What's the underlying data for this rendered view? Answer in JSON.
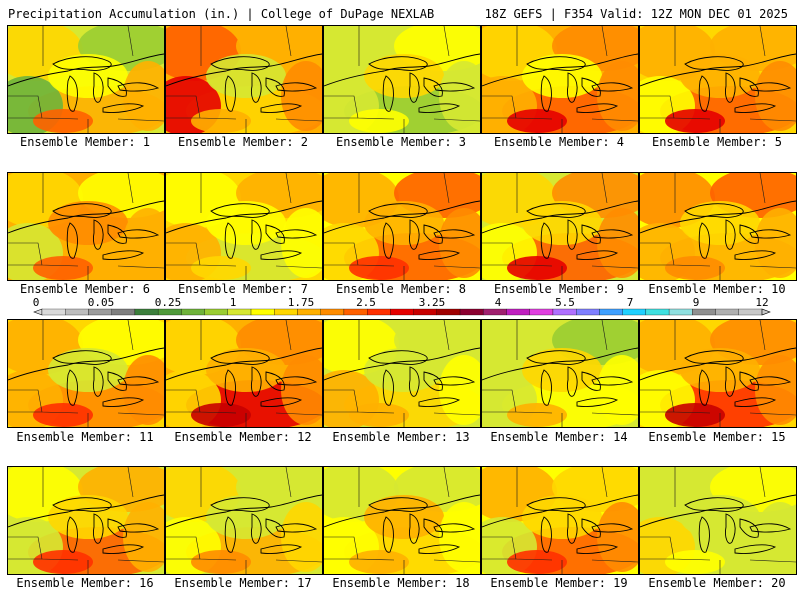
{
  "header": {
    "left_title": "Precipitation Accumulation (in.) | College of DuPage NEXLAB",
    "right_title": "18Z GEFS | F354 Valid: 12Z MON DEC 01 2025"
  },
  "members": [
    {
      "label": "Ensemble Member: 1",
      "palette": [
        0.35,
        0.45,
        0.25,
        0.55,
        0.15,
        0.4
      ]
    },
    {
      "label": "Ensemble Member: 2",
      "palette": [
        0.55,
        0.7,
        0.5,
        0.45,
        0.8,
        0.35
      ]
    },
    {
      "label": "Ensemble Member: 3",
      "palette": [
        0.3,
        0.35,
        0.4,
        0.25,
        0.35,
        0.45
      ]
    },
    {
      "label": "Ensemble Member: 4",
      "palette": [
        0.55,
        0.45,
        0.6,
        0.7,
        0.5,
        0.4
      ]
    },
    {
      "label": "Ensemble Member: 5",
      "palette": [
        0.45,
        0.55,
        0.5,
        0.7,
        0.4,
        0.55
      ]
    },
    {
      "label": "Ensemble Member: 6",
      "palette": [
        0.5,
        0.45,
        0.4,
        0.55,
        0.35,
        0.6
      ]
    },
    {
      "label": "Ensemble Member: 7",
      "palette": [
        0.45,
        0.4,
        0.5,
        0.35,
        0.55,
        0.4
      ]
    },
    {
      "label": "Ensemble Member: 8",
      "palette": [
        0.4,
        0.55,
        0.7,
        0.65,
        0.45,
        0.5
      ]
    },
    {
      "label": "Ensemble Member: 9",
      "palette": [
        0.35,
        0.45,
        0.6,
        0.7,
        0.4,
        0.45
      ]
    },
    {
      "label": "Ensemble Member: 10",
      "palette": [
        0.4,
        0.6,
        0.65,
        0.5,
        0.55,
        0.45
      ]
    },
    {
      "label": "Ensemble Member: 11",
      "palette": [
        0.45,
        0.55,
        0.4,
        0.6,
        0.5,
        0.35
      ]
    },
    {
      "label": "Ensemble Member: 12",
      "palette": [
        0.5,
        0.45,
        0.6,
        0.8,
        0.45,
        0.55
      ]
    },
    {
      "label": "Ensemble Member: 13",
      "palette": [
        0.35,
        0.4,
        0.3,
        0.45,
        0.5,
        0.35
      ]
    },
    {
      "label": "Ensemble Member: 14",
      "palette": [
        0.3,
        0.35,
        0.25,
        0.4,
        0.3,
        0.45
      ]
    },
    {
      "label": "Ensemble Member: 15",
      "palette": [
        0.45,
        0.5,
        0.6,
        0.75,
        0.4,
        0.5
      ]
    },
    {
      "label": "Ensemble Member: 16",
      "palette": [
        0.35,
        0.4,
        0.55,
        0.65,
        0.3,
        0.45
      ]
    },
    {
      "label": "Ensemble Member: 17",
      "palette": [
        0.35,
        0.45,
        0.3,
        0.5,
        0.4,
        0.35
      ]
    },
    {
      "label": "Ensemble Member: 18",
      "palette": [
        0.4,
        0.35,
        0.3,
        0.45,
        0.4,
        0.5
      ]
    },
    {
      "label": "Ensemble Member: 19",
      "palette": [
        0.4,
        0.55,
        0.45,
        0.65,
        0.35,
        0.45
      ]
    },
    {
      "label": "Ensemble Member: 20",
      "palette": [
        0.3,
        0.35,
        0.4,
        0.3,
        0.45,
        0.35
      ]
    }
  ],
  "colorbar": {
    "tick_labels": [
      "0",
      "0.05",
      "0.25",
      "1",
      "1.75",
      "2.5",
      "3.25",
      "4",
      "5.5",
      "7",
      "9",
      "12"
    ],
    "colors": [
      "#d9d9d9",
      "#bdbdbd",
      "#9c9c9c",
      "#7f7f7f",
      "#3c7f3c",
      "#4f9a3a",
      "#6fb33a",
      "#9acd32",
      "#d6e832",
      "#ffff00",
      "#ffd700",
      "#ffb000",
      "#ff8c00",
      "#ff6000",
      "#ff3000",
      "#e60000",
      "#c80000",
      "#a00000",
      "#8b0030",
      "#a0206f",
      "#c020c0",
      "#e040e0",
      "#b070ff",
      "#7f7fff",
      "#40a0ff",
      "#20d0ff",
      "#40e0e0",
      "#90e0e0",
      "#909090",
      "#b0b0b0",
      "#c8c8c8"
    ]
  }
}
